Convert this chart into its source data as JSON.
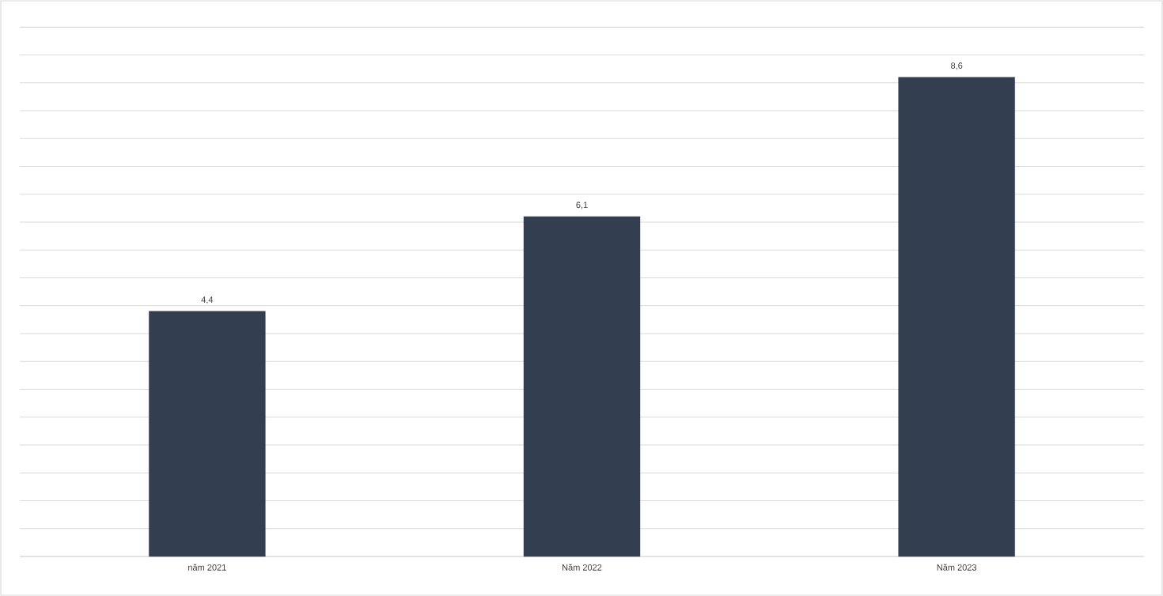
{
  "chart_data": {
    "type": "bar",
    "categories": [
      "năm 2021",
      "Năm 2022",
      "Năm 2023"
    ],
    "values": [
      4.4,
      6.1,
      8.6
    ],
    "color": "#333f50",
    "value_labels": [
      "4,4",
      "6,1",
      "8,6"
    ],
    "grid": "y",
    "tick_labels": "x"
  }
}
